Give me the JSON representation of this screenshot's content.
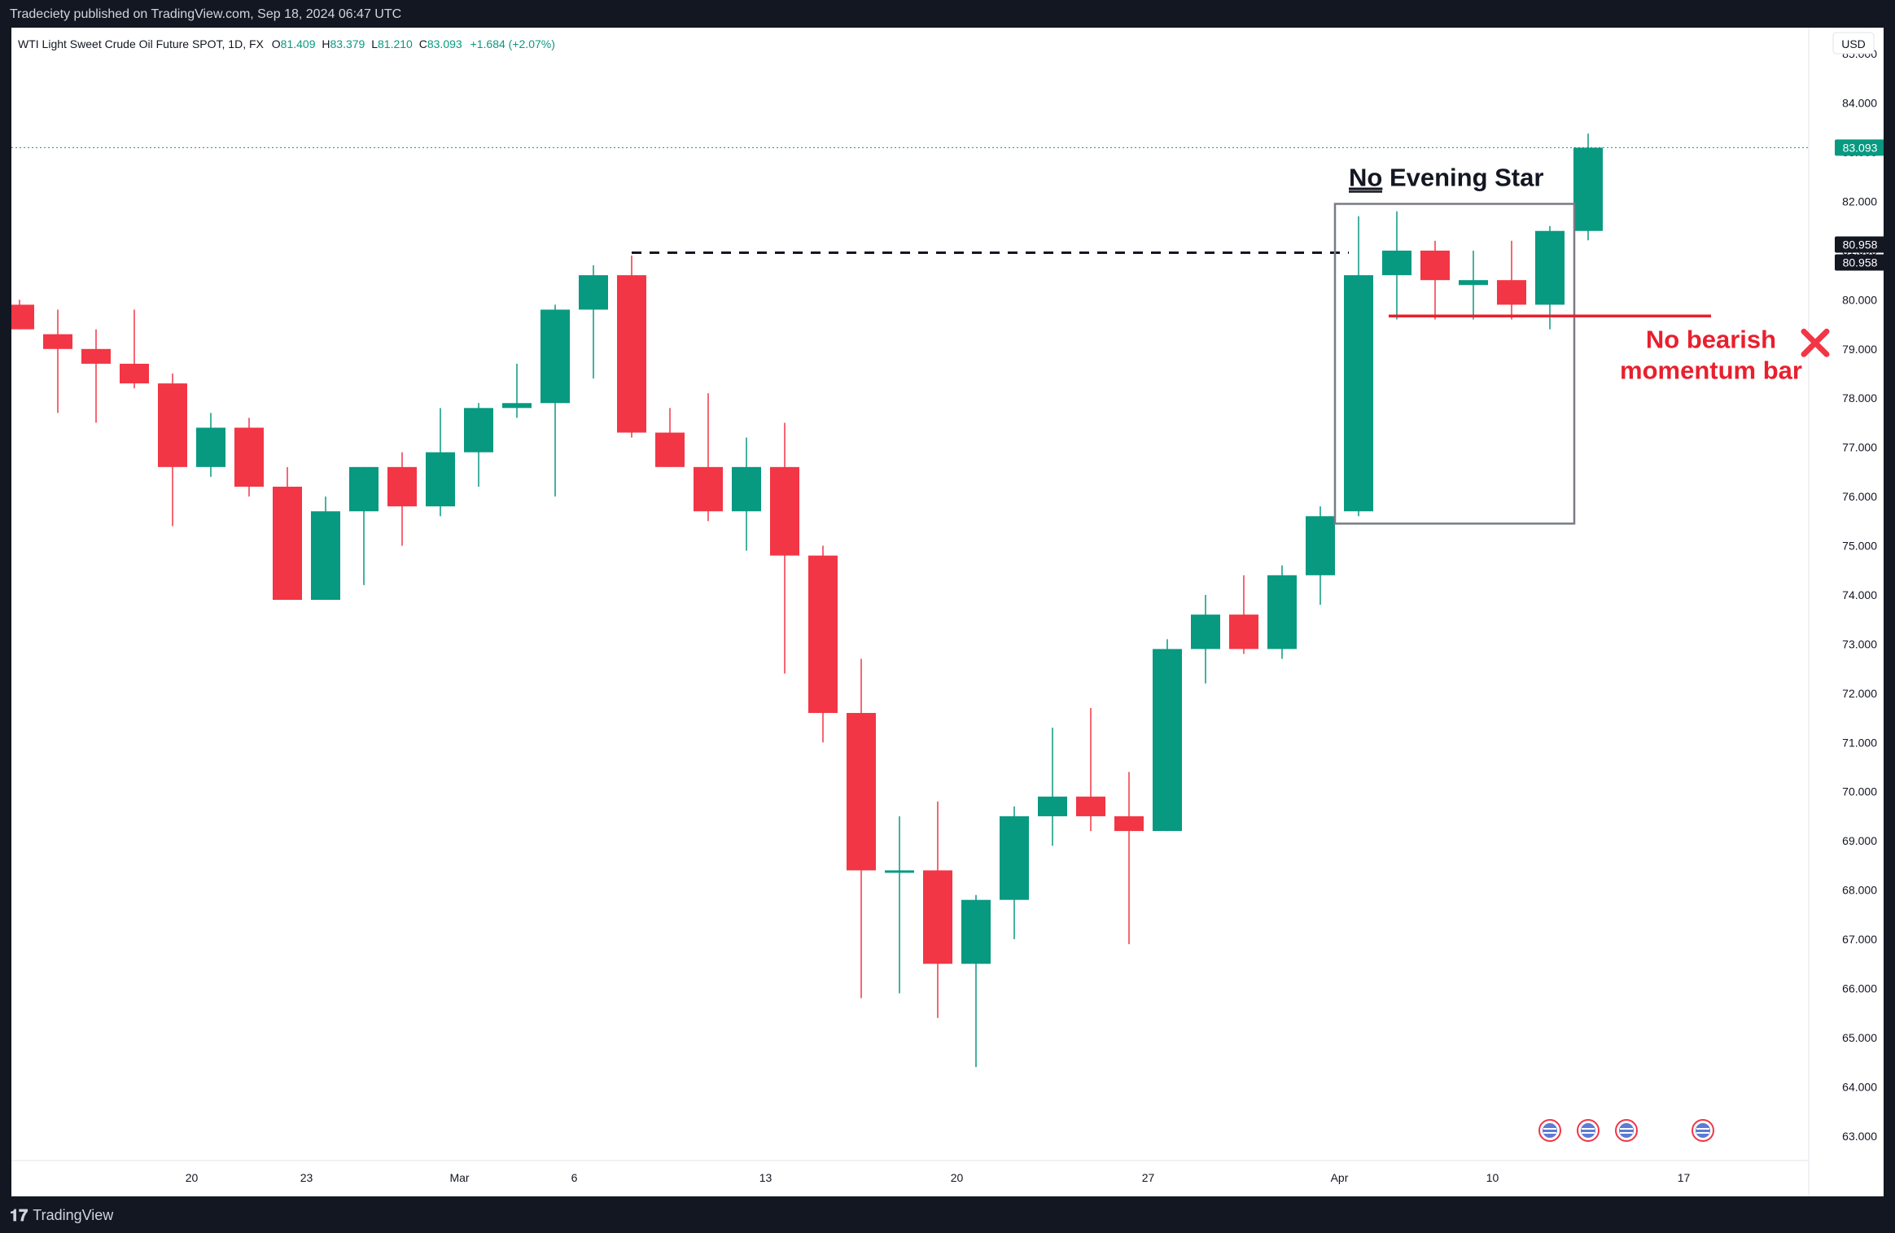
{
  "publisher": "Tradeciety published on TradingView.com, Sep 18, 2024 06:47 UTC",
  "brand": "TradingView",
  "colors": {
    "up": "#089981",
    "down": "#f23645",
    "accent": "#e8202e",
    "frame": "#131722"
  },
  "chart_data": {
    "type": "candlestick",
    "legend": {
      "symbol": "WTI Light Sweet Crude Oil Future SPOT, 1D, FX",
      "O": "81.409",
      "H": "83.379",
      "L": "81.210",
      "C": "83.093",
      "change": "+1.684 (+2.07%)"
    },
    "currency": "USD",
    "ylim": [
      62.5,
      85.4
    ],
    "y_ticks": [
      "63.000",
      "64.000",
      "65.000",
      "66.000",
      "67.000",
      "68.000",
      "69.000",
      "70.000",
      "71.000",
      "72.000",
      "73.000",
      "74.000",
      "75.000",
      "76.000",
      "77.000",
      "78.000",
      "79.000",
      "80.000",
      "81.000",
      "82.000",
      "83.000",
      "84.000",
      "85.000"
    ],
    "x_ticks": [
      {
        "label": "20",
        "bar": 4.5
      },
      {
        "label": "23",
        "bar": 7.5
      },
      {
        "label": "Mar",
        "bar": 11.5
      },
      {
        "label": "6",
        "bar": 14.5
      },
      {
        "label": "13",
        "bar": 19.5
      },
      {
        "label": "20",
        "bar": 24.5
      },
      {
        "label": "27",
        "bar": 29.5
      },
      {
        "label": "Apr",
        "bar": 34.5
      },
      {
        "label": "10",
        "bar": 38.5
      },
      {
        "label": "17",
        "bar": 43.5
      }
    ],
    "candles": [
      {
        "o": 79.9,
        "h": 80.0,
        "l": 79.4,
        "c": 79.4
      },
      {
        "o": 79.3,
        "h": 79.8,
        "l": 77.7,
        "c": 79.0
      },
      {
        "o": 79.0,
        "h": 79.4,
        "l": 77.5,
        "c": 78.7
      },
      {
        "o": 78.7,
        "h": 79.8,
        "l": 78.2,
        "c": 78.3
      },
      {
        "o": 78.3,
        "h": 78.5,
        "l": 75.4,
        "c": 76.6
      },
      {
        "o": 76.6,
        "h": 77.7,
        "l": 76.4,
        "c": 77.4
      },
      {
        "o": 77.4,
        "h": 77.6,
        "l": 76.0,
        "c": 76.2
      },
      {
        "o": 76.2,
        "h": 76.6,
        "l": 73.9,
        "c": 73.9
      },
      {
        "o": 73.9,
        "h": 76.0,
        "l": 73.9,
        "c": 75.7
      },
      {
        "o": 75.7,
        "h": 76.6,
        "l": 74.2,
        "c": 76.6
      },
      {
        "o": 76.6,
        "h": 76.9,
        "l": 75.0,
        "c": 75.8
      },
      {
        "o": 75.8,
        "h": 77.8,
        "l": 75.6,
        "c": 76.9
      },
      {
        "o": 76.9,
        "h": 77.9,
        "l": 76.2,
        "c": 77.8
      },
      {
        "o": 77.8,
        "h": 78.7,
        "l": 77.6,
        "c": 77.9
      },
      {
        "o": 77.9,
        "h": 79.9,
        "l": 76.0,
        "c": 79.8
      },
      {
        "o": 79.8,
        "h": 80.7,
        "l": 78.4,
        "c": 80.5
      },
      {
        "o": 80.5,
        "h": 80.9,
        "l": 77.2,
        "c": 77.3
      },
      {
        "o": 77.3,
        "h": 77.8,
        "l": 76.6,
        "c": 76.6
      },
      {
        "o": 76.6,
        "h": 78.1,
        "l": 75.5,
        "c": 75.7
      },
      {
        "o": 75.7,
        "h": 77.2,
        "l": 74.9,
        "c": 76.6
      },
      {
        "o": 76.6,
        "h": 77.5,
        "l": 72.4,
        "c": 74.8
      },
      {
        "o": 74.8,
        "h": 75.0,
        "l": 71.0,
        "c": 71.6
      },
      {
        "o": 71.6,
        "h": 72.7,
        "l": 65.8,
        "c": 68.4
      },
      {
        "o": 68.4,
        "h": 69.5,
        "l": 65.9,
        "c": 68.4
      },
      {
        "o": 68.4,
        "h": 69.8,
        "l": 65.4,
        "c": 66.5
      },
      {
        "o": 66.5,
        "h": 67.9,
        "l": 64.4,
        "c": 67.8
      },
      {
        "o": 67.8,
        "h": 69.7,
        "l": 67.0,
        "c": 69.5
      },
      {
        "o": 69.5,
        "h": 71.3,
        "l": 68.9,
        "c": 69.9
      },
      {
        "o": 69.9,
        "h": 71.7,
        "l": 69.2,
        "c": 69.5
      },
      {
        "o": 69.5,
        "h": 70.4,
        "l": 66.9,
        "c": 69.2
      },
      {
        "o": 69.2,
        "h": 73.1,
        "l": 69.2,
        "c": 72.9
      },
      {
        "o": 72.9,
        "h": 74.0,
        "l": 72.2,
        "c": 73.6
      },
      {
        "o": 73.6,
        "h": 74.4,
        "l": 72.8,
        "c": 72.9
      },
      {
        "o": 72.9,
        "h": 74.6,
        "l": 72.7,
        "c": 74.4
      },
      {
        "o": 74.4,
        "h": 75.8,
        "l": 73.8,
        "c": 75.6
      },
      {
        "o": 75.7,
        "h": 81.7,
        "l": 75.6,
        "c": 80.5
      },
      {
        "o": 80.5,
        "h": 81.8,
        "l": 79.6,
        "c": 81.0
      },
      {
        "o": 81.0,
        "h": 81.2,
        "l": 79.6,
        "c": 80.4
      },
      {
        "o": 80.3,
        "h": 81.0,
        "l": 79.6,
        "c": 80.4
      },
      {
        "o": 80.4,
        "h": 81.2,
        "l": 79.6,
        "c": 79.9
      },
      {
        "o": 79.9,
        "h": 81.5,
        "l": 79.4,
        "c": 81.4
      },
      {
        "o": 81.4,
        "h": 83.379,
        "l": 81.21,
        "c": 83.093
      }
    ],
    "price_tags": [
      {
        "label": "83.093",
        "value": 83.093,
        "style": "current"
      },
      {
        "label": "80.958",
        "value": 80.958,
        "style": "marker"
      },
      {
        "label": "80.958",
        "value": 80.958,
        "style": "marker"
      }
    ],
    "event_markers": [
      40,
      41,
      42,
      44
    ],
    "annotations": {
      "box_title_underlined": "No",
      "box_title_rest": " Evening Star",
      "no_momentum_line1": "No bearish",
      "no_momentum_line2": "momentum bar",
      "dashed_level": 80.958,
      "red_level": 79.67
    }
  }
}
